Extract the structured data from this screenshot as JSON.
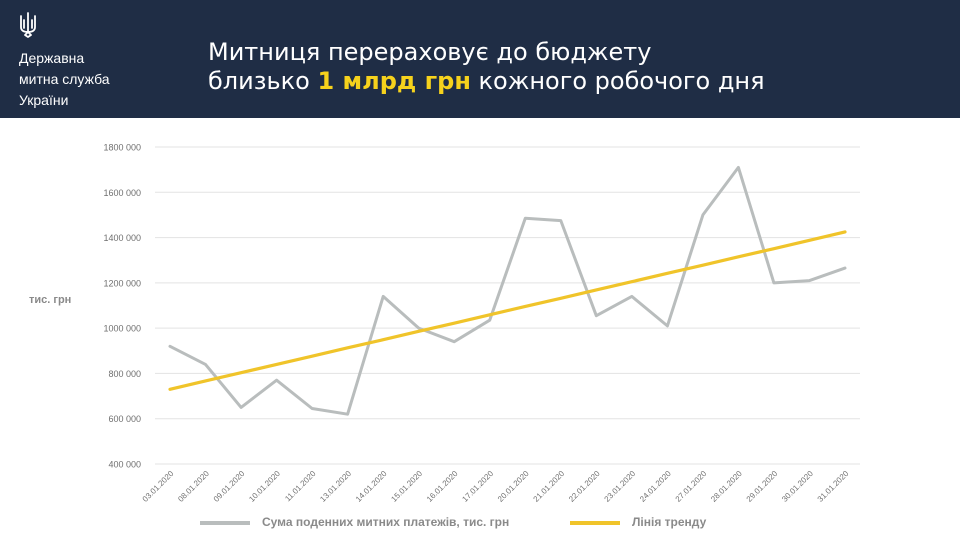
{
  "header": {
    "org_lines": [
      "Державна",
      "митна служба",
      "України"
    ],
    "title_line1": "Митниця перераховує до бюджету",
    "title_line2_prefix": "близько ",
    "title_line2_highlight": "1 млрд грн",
    "title_line2_suffix": " кожного робочого дня",
    "icon": "trident-icon"
  },
  "colors": {
    "header_bg": "#1f2d45",
    "highlight": "#f6d21c",
    "series_gray": "#b9bdbd",
    "trend_yellow": "#f0c42a"
  },
  "chart_data": {
    "type": "line",
    "ylabel": "тис. грн",
    "ylim": [
      400000,
      1800000
    ],
    "yticks": [
      400000,
      600000,
      800000,
      1000000,
      1200000,
      1400000,
      1600000,
      1800000
    ],
    "ytick_labels": [
      "400 000",
      "600 000",
      "800 000",
      "1000 000",
      "1200 000",
      "1400 000",
      "1600 000",
      "1800 000"
    ],
    "grid": true,
    "legend_position": "bottom",
    "categories": [
      "03.01.2020",
      "08.01.2020",
      "09.01.2020",
      "10.01.2020",
      "11.01.2020",
      "13.01.2020",
      "14.01.2020",
      "15.01.2020",
      "16.01.2020",
      "17.01.2020",
      "20.01.2020",
      "21.01.2020",
      "22.01.2020",
      "23.01.2020",
      "24.01.2020",
      "27.01.2020",
      "28.01.2020",
      "29.01.2020",
      "30.01.2020",
      "31.01.2020"
    ],
    "series": [
      {
        "name": "Сума поденних митних платежів, тис. грн",
        "color": "#b9bdbd",
        "values": [
          920000,
          840000,
          650000,
          770000,
          645000,
          620000,
          1140000,
          1000000,
          940000,
          1035000,
          1485000,
          1475000,
          1055000,
          1140000,
          1010000,
          1500000,
          1710000,
          1200000,
          1210000,
          1265000
        ]
      },
      {
        "name": "Лінія тренду",
        "color": "#f0c42a",
        "values": [
          730000,
          767000,
          803000,
          840000,
          876000,
          913000,
          949000,
          986000,
          1022000,
          1059000,
          1096000,
          1132000,
          1169000,
          1205000,
          1242000,
          1278000,
          1315000,
          1351000,
          1388000,
          1425000
        ]
      }
    ]
  }
}
